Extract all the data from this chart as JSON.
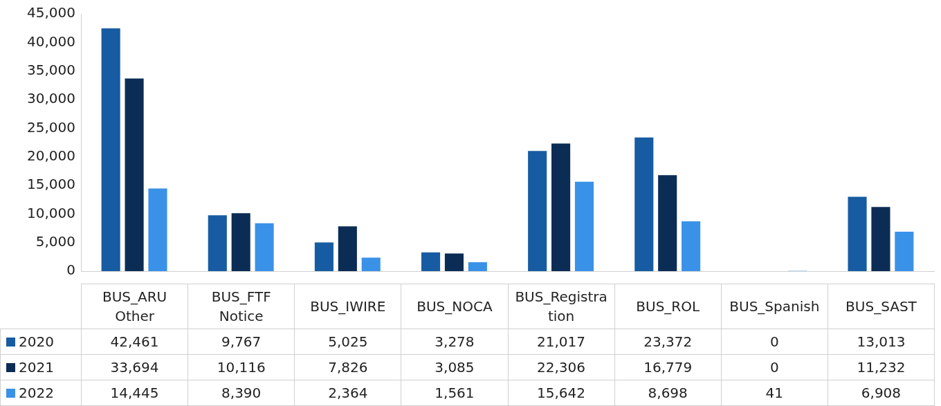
{
  "chart_data": {
    "type": "bar",
    "categories": [
      "BUS_ARU Other",
      "BUS_FTF Notice",
      "BUS_IWIRE",
      "BUS_NOCA",
      "BUS_Registration",
      "BUS_ROL",
      "BUS_Spanish",
      "BUS_SAST"
    ],
    "series": [
      {
        "name": "2020",
        "color": "#175ca2",
        "values": [
          42461,
          9767,
          5025,
          3278,
          21017,
          23372,
          0,
          13013
        ],
        "value_labels": [
          "42,461",
          "9,767",
          "5,025",
          "3,278",
          "21,017",
          "23,372",
          "0",
          "13,013"
        ]
      },
      {
        "name": "2021",
        "color": "#0b2d55",
        "values": [
          33694,
          10116,
          7826,
          3085,
          22306,
          16779,
          0,
          11232
        ],
        "value_labels": [
          "33,694",
          "10,116",
          "7,826",
          "3,085",
          "22,306",
          "16,779",
          "0",
          "11,232"
        ]
      },
      {
        "name": "2022",
        "color": "#3a92e8",
        "values": [
          14445,
          8390,
          2364,
          1561,
          15642,
          8698,
          41,
          6908
        ],
        "value_labels": [
          "14,445",
          "8,390",
          "2,364",
          "1,561",
          "15,642",
          "8,698",
          "41",
          "6,908"
        ]
      }
    ],
    "ylim": [
      0,
      45000
    ],
    "yticks": [
      0,
      {
        "value": 5000,
        "label": "5,000"
      },
      {
        "value": 10000,
        "label": "10,000"
      },
      {
        "value": 15000,
        "label": "15,000"
      },
      {
        "value": 20000,
        "label": "20,000"
      },
      {
        "value": 25000,
        "label": "25,000"
      },
      {
        "value": 30000,
        "label": "30,000"
      },
      {
        "value": 35000,
        "label": "35,000"
      },
      {
        "value": 40000,
        "label": "40,000"
      },
      {
        "value": 45000,
        "label": "45,000"
      }
    ],
    "grid": false,
    "legend": "bottom"
  }
}
